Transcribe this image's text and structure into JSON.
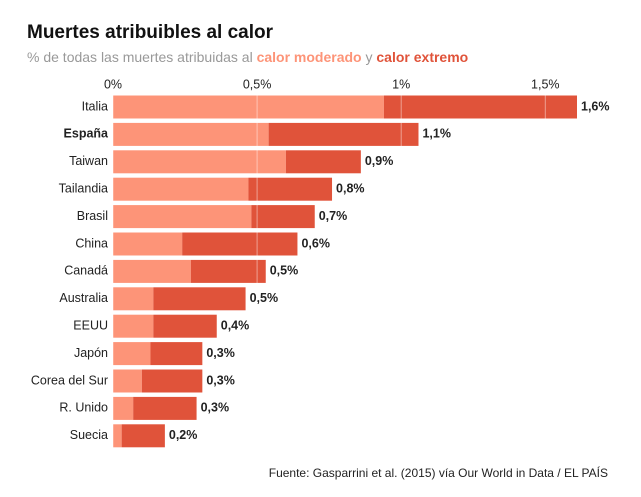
{
  "chart_data": {
    "type": "stacked_barh",
    "title": "Muertes atribuibles al calor",
    "subtitle": [
      "% de todas las muertes atribuidas al",
      "y"
    ],
    "categories": [
      "Italia",
      "España",
      "Taiwan",
      "Tailandia",
      "Brasil",
      "China",
      "Canadá",
      "Australia",
      "EEUU",
      "Japón",
      "Corea del Sur",
      "R. Unido",
      "Suecia"
    ],
    "highlight": 1,
    "series": [
      {
        "name": "calor moderado",
        "color": "#fd9478",
        "values": [
          0.94,
          0.54,
          0.6,
          0.47,
          0.48,
          0.24,
          0.27,
          0.14,
          0.14,
          0.13,
          0.1,
          0.07,
          0.03
        ]
      },
      {
        "name": "calor extremo",
        "color": "#e0533a",
        "values": [
          0.67,
          0.52,
          0.26,
          0.29,
          0.22,
          0.4,
          0.26,
          0.32,
          0.22,
          0.18,
          0.21,
          0.22,
          0.15
        ]
      }
    ],
    "totals": [
      1.61,
      1.06,
      0.86,
      0.76,
      0.7,
      0.64,
      0.53,
      0.46,
      0.36,
      0.31,
      0.31,
      0.29,
      0.18
    ],
    "value_labels": [
      "1,6%",
      "1,1%",
      "0,9%",
      "0,8%",
      "0,7%",
      "0,6%",
      "0,5%",
      "0,5%",
      "0,4%",
      "0,3%",
      "0,3%",
      "0,3%",
      "0,2%"
    ],
    "xlim": [
      0,
      1.61
    ],
    "xticks": [
      {
        "value": 0,
        "label": "0%"
      },
      {
        "value": 0.5,
        "label": "0,5%"
      },
      {
        "value": 1,
        "label": "1%"
      },
      {
        "value": 1.5,
        "label": "1,5%"
      }
    ],
    "grid": true,
    "source": "Fuente: Gasparrini et al. (2015) vía Our World in Data / EL PAÍS"
  }
}
